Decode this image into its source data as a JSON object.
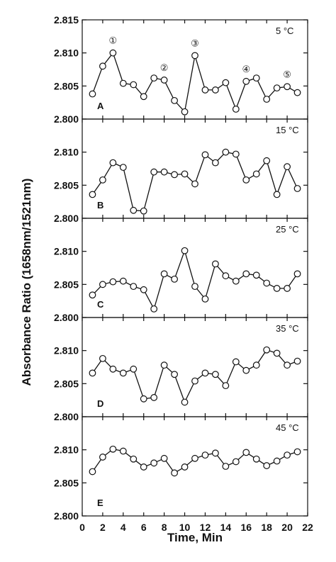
{
  "chart_data": {
    "type": "line",
    "xlabel": "Time, Min",
    "ylabel": "Absorbance Ratio (1658nm/1521nm)",
    "x": [
      1,
      2,
      3,
      4,
      5,
      6,
      7,
      8,
      9,
      10,
      11,
      12,
      13,
      14,
      15,
      16,
      17,
      18,
      19,
      20,
      21
    ],
    "xlim": [
      0,
      22
    ],
    "xticks": [
      0,
      2,
      4,
      6,
      8,
      10,
      12,
      14,
      16,
      18,
      20,
      22
    ],
    "panels": [
      {
        "label": "A",
        "temperature": "5 °C",
        "ylim": [
          2.8,
          2.815
        ],
        "yticks": [
          "2.800",
          "2.805",
          "2.810",
          "2.815"
        ],
        "values": [
          2.8038,
          2.808,
          2.81,
          2.8054,
          2.8052,
          2.8034,
          2.8062,
          2.8059,
          2.8028,
          2.8011,
          2.8096,
          2.8044,
          2.8044,
          2.8055,
          2.8015,
          2.8057,
          2.8062,
          2.803,
          2.8047,
          2.8049,
          2.804
        ],
        "annotations": [
          {
            "text": "①",
            "x": 3
          },
          {
            "text": "②",
            "x": 8
          },
          {
            "text": "③",
            "x": 11
          },
          {
            "text": "④",
            "x": 16
          },
          {
            "text": "⑤",
            "x": 20
          }
        ]
      },
      {
        "label": "B",
        "temperature": "15 °C",
        "ylim": [
          2.8,
          2.815
        ],
        "yticks": [
          "2.800",
          "2.805",
          "2.810"
        ],
        "values": [
          2.8036,
          2.8058,
          2.8084,
          2.8077,
          2.8012,
          2.8011,
          2.807,
          2.807,
          2.8066,
          2.8067,
          2.8052,
          2.8096,
          2.8084,
          2.81,
          2.8097,
          2.8058,
          2.8067,
          2.8087,
          2.8036,
          2.8078,
          2.8045
        ]
      },
      {
        "label": "C",
        "temperature": "25 °C",
        "ylim": [
          2.8,
          2.815
        ],
        "yticks": [
          "2.800",
          "2.805",
          "2.810"
        ],
        "values": [
          2.8034,
          2.805,
          2.8054,
          2.8055,
          2.8047,
          2.8042,
          2.8013,
          2.8066,
          2.8058,
          2.8101,
          2.8047,
          2.8028,
          2.8081,
          2.8063,
          2.8055,
          2.8066,
          2.8064,
          2.8052,
          2.8044,
          2.8044,
          2.8066
        ]
      },
      {
        "label": "D",
        "temperature": "35 °C",
        "ylim": [
          2.8,
          2.815
        ],
        "yticks": [
          "2.800",
          "2.805",
          "2.810"
        ],
        "values": [
          2.8066,
          2.8088,
          2.8072,
          2.8066,
          2.8072,
          2.8027,
          2.8029,
          2.8078,
          2.8064,
          2.8022,
          2.8054,
          2.8066,
          2.8064,
          2.8047,
          2.8083,
          2.807,
          2.8078,
          2.8101,
          2.8096,
          2.8078,
          2.8084
        ]
      },
      {
        "label": "E",
        "temperature": "45 °C",
        "ylim": [
          2.8,
          2.815
        ],
        "yticks": [
          "2.800",
          "2.805",
          "2.810"
        ],
        "values": [
          2.8067,
          2.8089,
          2.8101,
          2.8098,
          2.8086,
          2.8074,
          2.808,
          2.8087,
          2.8065,
          2.8074,
          2.8087,
          2.8092,
          2.8095,
          2.8075,
          2.8082,
          2.8096,
          2.8086,
          2.8076,
          2.8083,
          2.8092,
          2.8097
        ]
      }
    ]
  }
}
